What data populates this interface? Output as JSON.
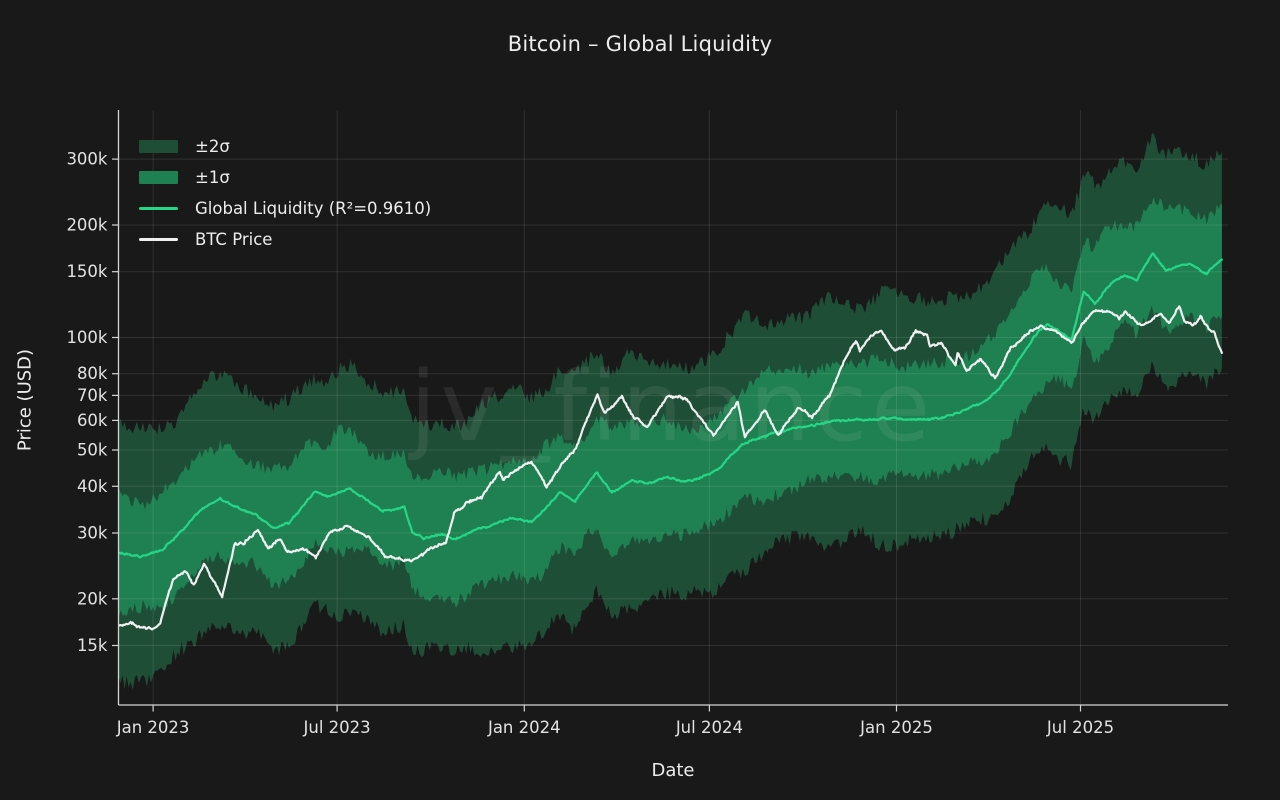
{
  "chart": {
    "title": "Bitcoin – Global Liquidity",
    "xlabel": "Date",
    "ylabel": "Price (USD)",
    "watermark": "jv_finance",
    "legend": [
      {
        "label": "±2σ",
        "type": "patch",
        "color": "#1f4e37"
      },
      {
        "label": "±1σ",
        "type": "patch",
        "color": "#1f8152"
      },
      {
        "label": "Global Liquidity (R²=0.9610)",
        "type": "line",
        "color": "#25d686"
      },
      {
        "label": "BTC Price",
        "type": "line",
        "color": "#f0f0f0"
      }
    ]
  },
  "colors": {
    "background": "#191919",
    "band_2sigma": "#1f4e37",
    "band_1sigma": "#1f8152",
    "liquidity_line": "#25d686",
    "btc_line": "#f0f0f0",
    "axis": "#d4d4d4",
    "tick_label": "#e2e2e2",
    "grid": "rgba(255,255,255,0.10)",
    "watermark": "rgba(216,228,222,0.085)"
  },
  "chart_data": {
    "type": "line",
    "yscale": "log",
    "x_domain": [
      "2022-11-28",
      "2025-11-23"
    ],
    "y_domain": [
      10400,
      406000
    ],
    "grid": true,
    "legend_position": "upper-left",
    "x_ticks": [
      {
        "date": "2023-01-01",
        "label": "Jan 2023"
      },
      {
        "date": "2023-07-01",
        "label": "Jul 2023"
      },
      {
        "date": "2024-01-01",
        "label": "Jan 2024"
      },
      {
        "date": "2024-07-01",
        "label": "Jul 2024"
      },
      {
        "date": "2025-01-01",
        "label": "Jan 2025"
      },
      {
        "date": "2025-07-01",
        "label": "Jul 2025"
      }
    ],
    "y_ticks": [
      {
        "value": 15000,
        "label": "15k"
      },
      {
        "value": 20000,
        "label": "20k"
      },
      {
        "value": 30000,
        "label": "30k"
      },
      {
        "value": 40000,
        "label": "40k"
      },
      {
        "value": 50000,
        "label": "50k"
      },
      {
        "value": 60000,
        "label": "60k"
      },
      {
        "value": 70000,
        "label": "70k"
      },
      {
        "value": 80000,
        "label": "80k"
      },
      {
        "value": 100000,
        "label": "100k"
      },
      {
        "value": 150000,
        "label": "150k"
      },
      {
        "value": 200000,
        "label": "200k"
      },
      {
        "value": 300000,
        "label": "300k"
      }
    ],
    "bands": {
      "sigma1_factor": 1.42,
      "sigma2_factor": 2.08,
      "edge_noise": 0.045
    },
    "series": [
      {
        "name": "BTC Price",
        "color": "#f0f0f0",
        "points": [
          [
            "2022-11-28",
            17000
          ],
          [
            "2022-12-10",
            17200
          ],
          [
            "2022-12-20",
            16800
          ],
          [
            "2023-01-01",
            16600
          ],
          [
            "2023-01-08",
            17000
          ],
          [
            "2023-01-14",
            19900
          ],
          [
            "2023-01-21",
            22700
          ],
          [
            "2023-02-02",
            23700
          ],
          [
            "2023-02-10",
            21800
          ],
          [
            "2023-02-20",
            24800
          ],
          [
            "2023-03-10",
            20300
          ],
          [
            "2023-03-22",
            27900
          ],
          [
            "2023-04-01",
            28300
          ],
          [
            "2023-04-14",
            30500
          ],
          [
            "2023-04-24",
            27300
          ],
          [
            "2023-05-06",
            29000
          ],
          [
            "2023-05-12",
            26800
          ],
          [
            "2023-06-01",
            27100
          ],
          [
            "2023-06-10",
            25600
          ],
          [
            "2023-06-23",
            30200
          ],
          [
            "2023-07-13",
            31300
          ],
          [
            "2023-08-01",
            29200
          ],
          [
            "2023-08-17",
            26100
          ],
          [
            "2023-09-11",
            25200
          ],
          [
            "2023-10-01",
            27200
          ],
          [
            "2023-10-16",
            28400
          ],
          [
            "2023-10-24",
            33800
          ],
          [
            "2023-11-09",
            36700
          ],
          [
            "2023-11-20",
            37300
          ],
          [
            "2023-12-08",
            44200
          ],
          [
            "2023-12-11",
            41300
          ],
          [
            "2023-12-22",
            43800
          ],
          [
            "2024-01-08",
            46600
          ],
          [
            "2024-01-23",
            39900
          ],
          [
            "2024-02-09",
            46500
          ],
          [
            "2024-02-21",
            50500
          ],
          [
            "2024-02-29",
            58500
          ],
          [
            "2024-03-13",
            70500
          ],
          [
            "2024-03-20",
            62500
          ],
          [
            "2024-04-06",
            69500
          ],
          [
            "2024-04-17",
            61500
          ],
          [
            "2024-05-01",
            57800
          ],
          [
            "2024-05-21",
            69500
          ],
          [
            "2024-06-07",
            69000
          ],
          [
            "2024-06-24",
            60000
          ],
          [
            "2024-07-05",
            54500
          ],
          [
            "2024-07-29",
            67500
          ],
          [
            "2024-08-05",
            53900
          ],
          [
            "2024-08-25",
            64000
          ],
          [
            "2024-09-06",
            54500
          ],
          [
            "2024-09-27",
            65300
          ],
          [
            "2024-10-10",
            61000
          ],
          [
            "2024-10-29",
            71500
          ],
          [
            "2024-11-11",
            87500
          ],
          [
            "2024-11-22",
            97500
          ],
          [
            "2024-11-26",
            92500
          ],
          [
            "2024-12-06",
            100500
          ],
          [
            "2024-12-17",
            104500
          ],
          [
            "2024-12-30",
            92500
          ],
          [
            "2025-01-09",
            93500
          ],
          [
            "2025-01-20",
            104000
          ],
          [
            "2025-01-31",
            101500
          ],
          [
            "2025-02-03",
            94000
          ],
          [
            "2025-02-14",
            97000
          ],
          [
            "2025-02-28",
            84000
          ],
          [
            "2025-03-02",
            91500
          ],
          [
            "2025-03-11",
            81500
          ],
          [
            "2025-03-25",
            87500
          ],
          [
            "2025-04-08",
            77500
          ],
          [
            "2025-04-23",
            93500
          ],
          [
            "2025-05-12",
            103500
          ],
          [
            "2025-05-22",
            107000
          ],
          [
            "2025-06-05",
            104500
          ],
          [
            "2025-06-22",
            96500
          ],
          [
            "2025-07-03",
            108500
          ],
          [
            "2025-07-14",
            117500
          ],
          [
            "2025-07-28",
            117500
          ],
          [
            "2025-08-08",
            113000
          ],
          [
            "2025-08-14",
            117000
          ],
          [
            "2025-08-24",
            110500
          ],
          [
            "2025-09-01",
            108000
          ],
          [
            "2025-09-18",
            116000
          ],
          [
            "2025-09-26",
            109500
          ],
          [
            "2025-10-06",
            121000
          ],
          [
            "2025-10-11",
            110500
          ],
          [
            "2025-10-20",
            107500
          ],
          [
            "2025-10-27",
            113500
          ],
          [
            "2025-11-03",
            106500
          ],
          [
            "2025-11-10",
            102500
          ],
          [
            "2025-11-17",
            90500
          ]
        ]
      },
      {
        "name": "Global Liquidity",
        "r_squared": "0.9610",
        "color": "#25d686",
        "points": [
          [
            "2022-11-28",
            26600
          ],
          [
            "2022-12-20",
            25900
          ],
          [
            "2023-01-10",
            27000
          ],
          [
            "2023-02-01",
            31000
          ],
          [
            "2023-02-15",
            34300
          ],
          [
            "2023-03-08",
            37000
          ],
          [
            "2023-03-24",
            35200
          ],
          [
            "2023-04-12",
            33600
          ],
          [
            "2023-04-29",
            30900
          ],
          [
            "2023-05-15",
            32000
          ],
          [
            "2023-06-09",
            38600
          ],
          [
            "2023-06-25",
            37600
          ],
          [
            "2023-07-12",
            39600
          ],
          [
            "2023-08-01",
            36500
          ],
          [
            "2023-08-15",
            34200
          ],
          [
            "2023-09-05",
            35200
          ],
          [
            "2023-09-13",
            30200
          ],
          [
            "2023-09-25",
            29000
          ],
          [
            "2023-10-10",
            29800
          ],
          [
            "2023-10-25",
            28800
          ],
          [
            "2023-11-10",
            30300
          ],
          [
            "2023-12-01",
            31500
          ],
          [
            "2023-12-20",
            33000
          ],
          [
            "2024-01-09",
            32000
          ],
          [
            "2024-02-05",
            38500
          ],
          [
            "2024-02-20",
            36500
          ],
          [
            "2024-03-12",
            43500
          ],
          [
            "2024-03-27",
            38500
          ],
          [
            "2024-04-16",
            41500
          ],
          [
            "2024-05-01",
            40500
          ],
          [
            "2024-05-20",
            42500
          ],
          [
            "2024-06-05",
            41000
          ],
          [
            "2024-06-20",
            42000
          ],
          [
            "2024-07-08",
            44000
          ],
          [
            "2024-08-03",
            52000
          ],
          [
            "2024-09-02",
            55500
          ],
          [
            "2024-09-20",
            57000
          ],
          [
            "2024-10-15",
            58500
          ],
          [
            "2024-11-02",
            60000
          ],
          [
            "2024-12-01",
            60300
          ],
          [
            "2024-12-31",
            61000
          ],
          [
            "2025-01-20",
            60200
          ],
          [
            "2025-02-10",
            60800
          ],
          [
            "2025-02-25",
            62000
          ],
          [
            "2025-03-15",
            65000
          ],
          [
            "2025-03-31",
            68000
          ],
          [
            "2025-04-12",
            73000
          ],
          [
            "2025-04-23",
            80000
          ],
          [
            "2025-05-05",
            90000
          ],
          [
            "2025-05-20",
            104000
          ],
          [
            "2025-05-30",
            109000
          ],
          [
            "2025-06-10",
            104000
          ],
          [
            "2025-06-22",
            98000
          ],
          [
            "2025-07-04",
            133000
          ],
          [
            "2025-07-15",
            123000
          ],
          [
            "2025-08-01",
            141000
          ],
          [
            "2025-08-14",
            146000
          ],
          [
            "2025-08-25",
            142000
          ],
          [
            "2025-09-10",
            168000
          ],
          [
            "2025-09-23",
            151000
          ],
          [
            "2025-10-07",
            156000
          ],
          [
            "2025-10-17",
            157000
          ],
          [
            "2025-11-02",
            148000
          ],
          [
            "2025-11-10",
            156000
          ],
          [
            "2025-11-17",
            162000
          ]
        ]
      }
    ]
  }
}
